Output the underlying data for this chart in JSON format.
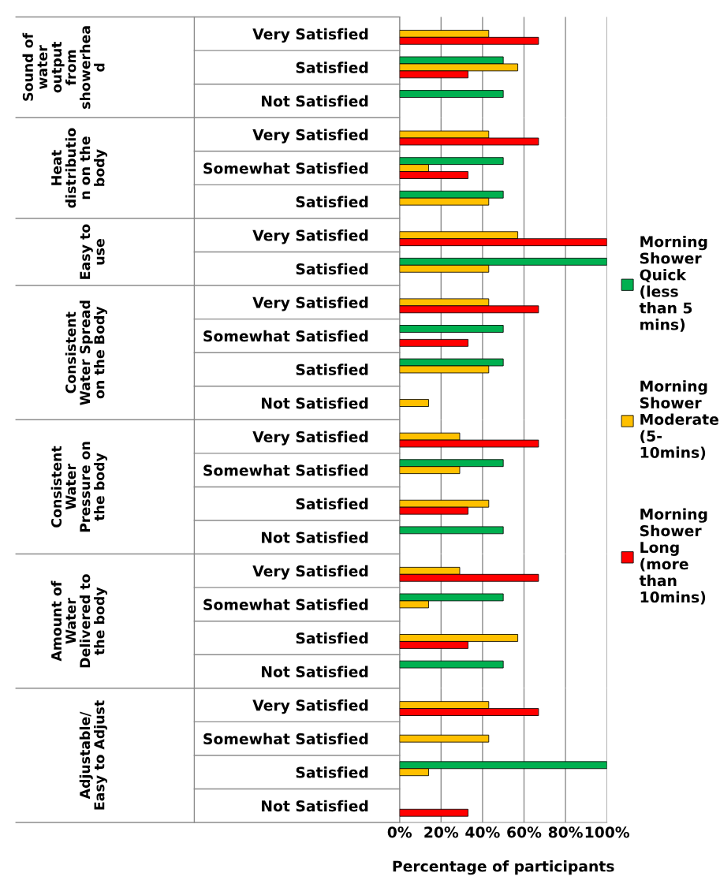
{
  "chart_data": [
    {
      "type": "bar",
      "orientation": "horizontal",
      "ylabel": "Sound of\nwater\noutput\nfrom\nshowerhea\nd",
      "categories": [
        "Very Satisfied",
        "Satisfied",
        "Not Satisfied"
      ],
      "xlim": [
        0,
        100
      ],
      "grid": "x",
      "tick_labels": "y",
      "legend": "right",
      "series": [
        {
          "name": "Morning\nShower\nQuick\n(less\nthan 5\nmins)",
          "color": "#00b050",
          "values": [
            null,
            50,
            50
          ]
        },
        {
          "name": "Morning\nShower\nModerate\n(5-\n10mins)",
          "color": "#ffc000",
          "values": [
            43,
            57,
            null
          ]
        },
        {
          "name": "Morning\nShower\nLong\n(more\nthan\n10mins)",
          "color": "#ff0000",
          "values": [
            67,
            33,
            null
          ]
        }
      ]
    },
    {
      "type": "bar",
      "orientation": "horizontal",
      "ylabel": "Heat\ndistributio\nn on the\nbody",
      "categories": [
        "Very Satisfied",
        "Somewhat Satisfied",
        "Satisfied"
      ],
      "xlim": [
        0,
        100
      ],
      "grid": "x",
      "tick_labels": "y",
      "series": [
        {
          "color": "#00b050",
          "values": [
            null,
            50,
            50
          ]
        },
        {
          "color": "#ffc000",
          "values": [
            43,
            14,
            43
          ]
        },
        {
          "color": "#ff0000",
          "values": [
            67,
            33,
            null
          ]
        }
      ]
    },
    {
      "type": "bar",
      "orientation": "horizontal",
      "ylabel": "Easy to\nuse",
      "categories": [
        "Very Satisfied",
        "Satisfied"
      ],
      "xlim": [
        0,
        100
      ],
      "grid": "x",
      "tick_labels": "y",
      "series": [
        {
          "color": "#00b050",
          "values": [
            null,
            100
          ]
        },
        {
          "color": "#ffc000",
          "values": [
            57,
            43
          ]
        },
        {
          "color": "#ff0000",
          "values": [
            100,
            null
          ]
        }
      ]
    },
    {
      "type": "bar",
      "orientation": "horizontal",
      "ylabel": "Consistent\nWater Spread\non the Body",
      "categories": [
        "Very Satisfied",
        "Somewhat Satisfied",
        "Satisfied",
        "Not Satisfied"
      ],
      "xlim": [
        0,
        100
      ],
      "grid": "x",
      "tick_labels": "y",
      "series": [
        {
          "color": "#00b050",
          "values": [
            null,
            50,
            50,
            null
          ]
        },
        {
          "color": "#ffc000",
          "values": [
            43,
            null,
            43,
            14
          ]
        },
        {
          "color": "#ff0000",
          "values": [
            67,
            33,
            null,
            null
          ]
        }
      ]
    },
    {
      "type": "bar",
      "orientation": "horizontal",
      "ylabel": "Consistent\nWater\nPressure on\nthe body",
      "categories": [
        "Very Satisfied",
        "Somewhat Satisfied",
        "Satisfied",
        "Not Satisfied"
      ],
      "xlim": [
        0,
        100
      ],
      "grid": "x",
      "tick_labels": "y",
      "series": [
        {
          "color": "#00b050",
          "values": [
            null,
            50,
            null,
            50
          ]
        },
        {
          "color": "#ffc000",
          "values": [
            29,
            29,
            43,
            null
          ]
        },
        {
          "color": "#ff0000",
          "values": [
            67,
            null,
            33,
            null
          ]
        }
      ]
    },
    {
      "type": "bar",
      "orientation": "horizontal",
      "ylabel": "Amount of\nWater\nDelivered to\nthe body",
      "categories": [
        "Very Satisfied",
        "Somewhat Satisfied",
        "Satisfied",
        "Not Satisfied"
      ],
      "xlim": [
        0,
        100
      ],
      "grid": "x",
      "tick_labels": "y",
      "series": [
        {
          "color": "#00b050",
          "values": [
            null,
            50,
            null,
            50
          ]
        },
        {
          "color": "#ffc000",
          "values": [
            29,
            14,
            57,
            null
          ]
        },
        {
          "color": "#ff0000",
          "values": [
            67,
            null,
            33,
            null
          ]
        }
      ]
    },
    {
      "type": "bar",
      "orientation": "horizontal",
      "ylabel": "Adjustable/\nEasy to Adjust",
      "categories": [
        "Very Satisfied",
        "Somewhat Satisfied",
        "Satisfied",
        "Not Satisfied"
      ],
      "xlim": [
        0,
        100
      ],
      "xticks": [
        {
          "value": 0,
          "label": "0%"
        },
        {
          "value": 20,
          "label": "20%"
        },
        {
          "value": 40,
          "label": "40%"
        },
        {
          "value": 60,
          "label": "60%"
        },
        {
          "value": 80,
          "label": "80%"
        },
        {
          "value": 100,
          "label": "100%"
        }
      ],
      "grid": "x",
      "xlabel": "Percentage of participants",
      "series": [
        {
          "color": "#00b050",
          "values": [
            null,
            null,
            100,
            null
          ]
        },
        {
          "color": "#ffc000",
          "values": [
            43,
            43,
            14,
            null
          ]
        },
        {
          "color": "#ff0000",
          "values": [
            67,
            null,
            null,
            33
          ]
        }
      ]
    }
  ]
}
